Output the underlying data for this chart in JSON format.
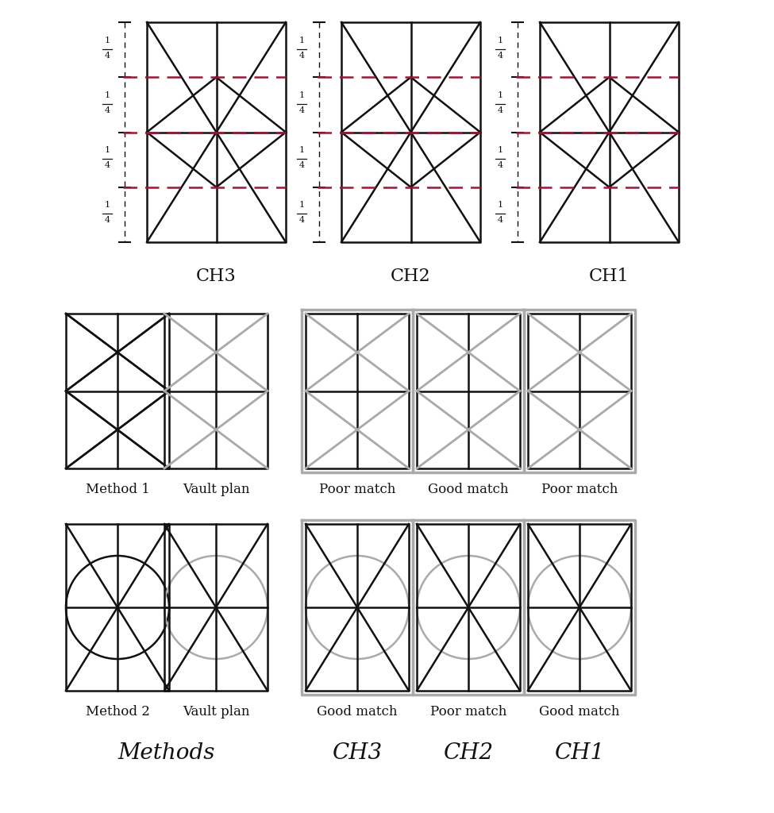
{
  "bg_color": "#ffffff",
  "red_color": "#aa1133",
  "gray_color": "#aaaaaa",
  "dark_color": "#111111",
  "top_ch_labels": [
    "CH3",
    "CH2",
    "CH1"
  ],
  "row1_labels": [
    "Method 1",
    "Vault plan",
    "Poor match",
    "Good match",
    "Poor match"
  ],
  "row2_labels": [
    "Method 2",
    "Vault plan",
    "Good match",
    "Poor match",
    "Good match"
  ],
  "bottom_labels": [
    "Methods",
    "CH3",
    "CH2",
    "CH1"
  ]
}
